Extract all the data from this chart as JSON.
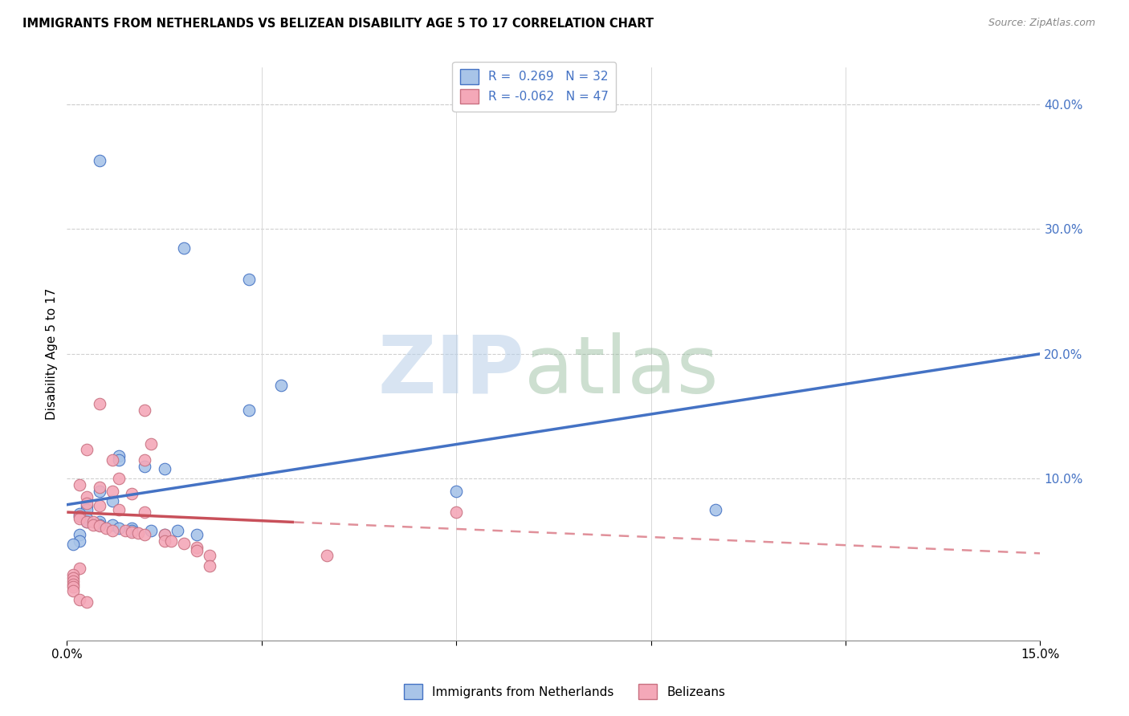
{
  "title": "IMMIGRANTS FROM NETHERLANDS VS BELIZEAN DISABILITY AGE 5 TO 17 CORRELATION CHART",
  "source": "Source: ZipAtlas.com",
  "ylabel": "Disability Age 5 to 17",
  "xlim": [
    0.0,
    0.15
  ],
  "ylim": [
    -0.03,
    0.43
  ],
  "legend_r1": "R =  0.269",
  "legend_n1": "N = 32",
  "legend_r2": "R = -0.062",
  "legend_n2": "N = 47",
  "color_blue": "#a8c4e8",
  "color_pink": "#f4a8b8",
  "color_line_blue": "#4472c4",
  "color_line_pink": "#c8505a",
  "color_line_pink_dash": "#e0909a",
  "color_text_blue": "#4472c4",
  "blue_points": [
    [
      0.005,
      0.355
    ],
    [
      0.018,
      0.285
    ],
    [
      0.028,
      0.26
    ],
    [
      0.033,
      0.175
    ],
    [
      0.028,
      0.155
    ],
    [
      0.008,
      0.118
    ],
    [
      0.012,
      0.11
    ],
    [
      0.015,
      0.108
    ],
    [
      0.008,
      0.115
    ],
    [
      0.005,
      0.09
    ],
    [
      0.007,
      0.082
    ],
    [
      0.003,
      0.078
    ],
    [
      0.003,
      0.075
    ],
    [
      0.002,
      0.072
    ],
    [
      0.002,
      0.07
    ],
    [
      0.003,
      0.068
    ],
    [
      0.003,
      0.065
    ],
    [
      0.005,
      0.065
    ],
    [
      0.005,
      0.063
    ],
    [
      0.007,
      0.063
    ],
    [
      0.008,
      0.06
    ],
    [
      0.01,
      0.06
    ],
    [
      0.01,
      0.058
    ],
    [
      0.013,
      0.058
    ],
    [
      0.017,
      0.058
    ],
    [
      0.02,
      0.055
    ],
    [
      0.015,
      0.055
    ],
    [
      0.002,
      0.055
    ],
    [
      0.002,
      0.05
    ],
    [
      0.06,
      0.09
    ],
    [
      0.1,
      0.075
    ],
    [
      0.001,
      0.047
    ]
  ],
  "pink_points": [
    [
      0.005,
      0.16
    ],
    [
      0.012,
      0.155
    ],
    [
      0.013,
      0.128
    ],
    [
      0.003,
      0.123
    ],
    [
      0.007,
      0.115
    ],
    [
      0.012,
      0.115
    ],
    [
      0.008,
      0.1
    ],
    [
      0.002,
      0.095
    ],
    [
      0.005,
      0.093
    ],
    [
      0.007,
      0.09
    ],
    [
      0.01,
      0.088
    ],
    [
      0.003,
      0.085
    ],
    [
      0.003,
      0.08
    ],
    [
      0.005,
      0.078
    ],
    [
      0.008,
      0.075
    ],
    [
      0.012,
      0.073
    ],
    [
      0.002,
      0.07
    ],
    [
      0.002,
      0.068
    ],
    [
      0.003,
      0.065
    ],
    [
      0.004,
      0.065
    ],
    [
      0.004,
      0.063
    ],
    [
      0.005,
      0.062
    ],
    [
      0.006,
      0.06
    ],
    [
      0.007,
      0.058
    ],
    [
      0.009,
      0.058
    ],
    [
      0.01,
      0.057
    ],
    [
      0.011,
      0.056
    ],
    [
      0.012,
      0.055
    ],
    [
      0.015,
      0.055
    ],
    [
      0.015,
      0.05
    ],
    [
      0.016,
      0.05
    ],
    [
      0.018,
      0.048
    ],
    [
      0.02,
      0.045
    ],
    [
      0.02,
      0.042
    ],
    [
      0.022,
      0.038
    ],
    [
      0.022,
      0.03
    ],
    [
      0.002,
      0.028
    ],
    [
      0.001,
      0.023
    ],
    [
      0.001,
      0.02
    ],
    [
      0.001,
      0.018
    ],
    [
      0.001,
      0.015
    ],
    [
      0.001,
      0.013
    ],
    [
      0.001,
      0.01
    ],
    [
      0.06,
      0.073
    ],
    [
      0.04,
      0.038
    ],
    [
      0.002,
      0.003
    ],
    [
      0.003,
      0.001
    ]
  ],
  "blue_trendline": [
    [
      0.0,
      0.079
    ],
    [
      0.15,
      0.2
    ]
  ],
  "pink_trendline_solid": [
    [
      0.0,
      0.073
    ],
    [
      0.035,
      0.065
    ]
  ],
  "pink_trendline_dash": [
    [
      0.035,
      0.065
    ],
    [
      0.15,
      0.04
    ]
  ]
}
